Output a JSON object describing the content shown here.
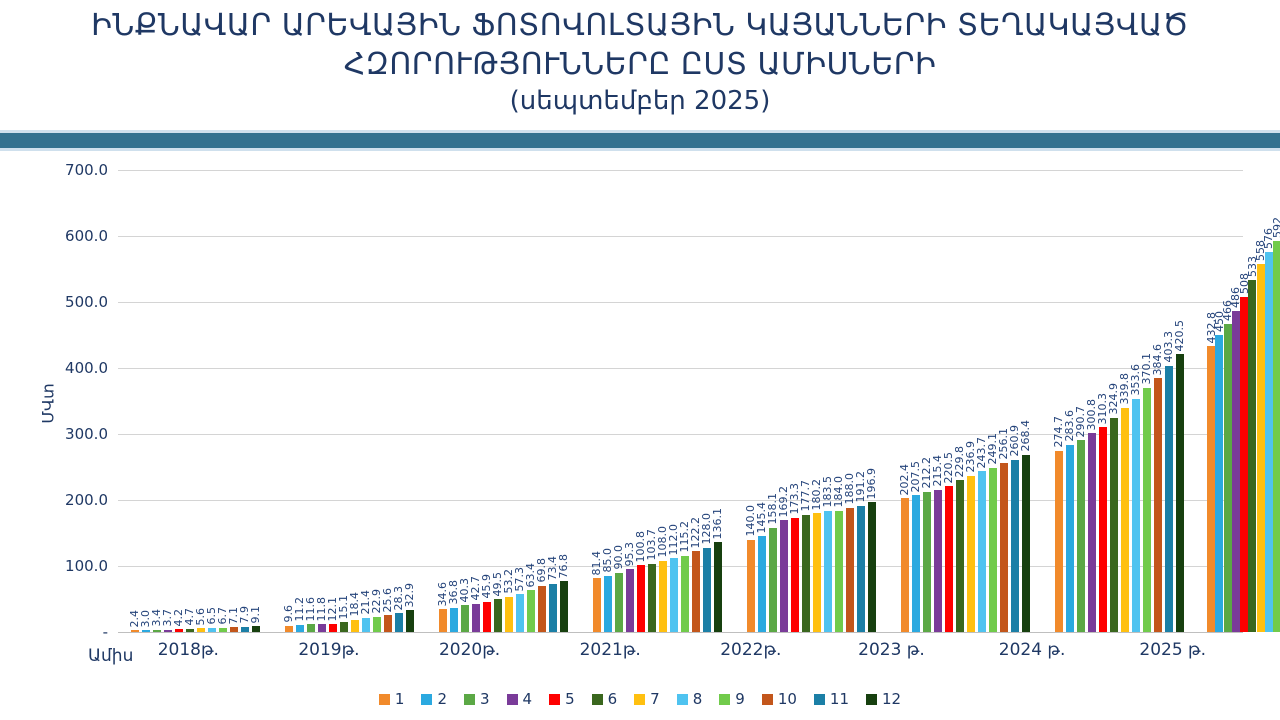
{
  "title": {
    "line1": "ԻՆՔՆԱՎԱՐ ԱՐԵՎԱՅԻՆ ՖՈՏՈՎՈԼՏԱՅԻՆ ԿԱՅԱՆՆԵՐԻ ՏԵՂԱԿԱՅՎԱԾ",
    "line2": "ՀԶՈՐՈՒԹՅՈՒՆՆԵՐԸ ԸՍՏ ԱՄԻՍՆԵՐԻ",
    "line3": "(սեպտեմբեր 2025)",
    "color": "#1F3864"
  },
  "divider": {
    "band_color": "#33718F",
    "edge_color": "#CFE0ED"
  },
  "chart_data": {
    "type": "bar",
    "title": "ԻՆՔՆԱՎԱՐ ԱՐԵՎԱՅԻՆ ՖՈՏՈՎՈԼՏԱՅԻՆ ԿԱՅԱՆՆԵՐԻ ՏԵՂԱԿԱՅՎԱԾ ՀԶՈՐՈՒԹՅՈՒՆՆԵՐԸ ԸՍՏ ԱՄԻՍՆԵՐԻ",
    "subtitle": "(սեպտեմբեր 2025)",
    "ylabel": "ՄՎտ",
    "xlabel": "Ամիս",
    "ylim": [
      0,
      700
    ],
    "grid": true,
    "legend_position": "bottom",
    "yticks": [
      0,
      100,
      200,
      300,
      400,
      500,
      600,
      700
    ],
    "ytick_labels": [
      "-",
      "100.0",
      "200.0",
      "300.0",
      "400.0",
      "500.0",
      "600.0",
      "700.0"
    ],
    "series_names": [
      "1",
      "2",
      "3",
      "4",
      "5",
      "6",
      "7",
      "8",
      "9",
      "10",
      "11",
      "12"
    ],
    "series_colors": [
      "#F18A2B",
      "#2BA9E0",
      "#5BA845",
      "#7A3B99",
      "#FE0000",
      "#3A671E",
      "#FFC010",
      "#4FC3F0",
      "#71CB4B",
      "#C3561B",
      "#1B7FA6",
      "#17400F"
    ],
    "categories": [
      "2018թ.",
      "2019թ.",
      "2020թ.",
      "2021թ.",
      "2022թ.",
      "2023 թ.",
      "2024 թ.",
      "2025 թ."
    ],
    "groups": [
      {
        "category": "2018թ.",
        "values": [
          2.4,
          3.0,
          3.4,
          3.7,
          4.2,
          4.7,
          5.6,
          6.5,
          6.7,
          7.1,
          7.9,
          9.1
        ],
        "labels": [
          "2.4",
          "3.0",
          "3.4",
          "3.7",
          "4.2",
          "4.7",
          "5.6",
          "6.5",
          "6.7",
          "7.1",
          "7.9",
          "9.1"
        ]
      },
      {
        "category": "2019թ.",
        "values": [
          9.6,
          11.2,
          11.6,
          11.8,
          12.1,
          15.1,
          18.4,
          21.4,
          22.9,
          25.6,
          28.3,
          32.9
        ],
        "labels": [
          "9.6",
          "11.2",
          "11.6",
          "11.8",
          "12.1",
          "15.1",
          "18.4",
          "21.4",
          "22.9",
          "25.6",
          "28.3",
          "32.9"
        ]
      },
      {
        "category": "2020թ.",
        "values": [
          34.6,
          36.8,
          40.3,
          42.7,
          45.9,
          49.5,
          53.2,
          57.3,
          63.4,
          69.8,
          73.4,
          76.8
        ],
        "labels": [
          "34.6",
          "36.8",
          "40.3",
          "42.7",
          "45.9",
          "49.5",
          "53.2",
          "57.3",
          "63.4",
          "69.8",
          "73.4",
          "76.8"
        ]
      },
      {
        "category": "2021թ.",
        "values": [
          81.4,
          85.0,
          90.0,
          95.3,
          100.8,
          103.7,
          108.0,
          112.0,
          115.2,
          122.2,
          128.0,
          136.1
        ],
        "labels": [
          "81.4",
          "85.0",
          "90.0",
          "95.3",
          "100.8",
          "103.7",
          "108.0",
          "112.0",
          "115.2",
          "122.2",
          "128.0",
          "136.1"
        ]
      },
      {
        "category": "2022թ.",
        "values": [
          140.0,
          145.4,
          158.1,
          169.2,
          173.3,
          177.7,
          180.2,
          183.5,
          184.0,
          188.0,
          191.2,
          196.9
        ],
        "labels": [
          "140.0",
          "145.4",
          "158.1",
          "169.2",
          "173.3",
          "177.7",
          "180.2",
          "183.5",
          "184.0",
          "188.0",
          "191.2",
          "196.9"
        ]
      },
      {
        "category": "2023 թ.",
        "values": [
          202.4,
          207.5,
          212.2,
          215.4,
          220.5,
          229.8,
          236.9,
          243.7,
          249.1,
          256.1,
          260.9,
          268.4
        ],
        "labels": [
          "202.4",
          "207.5",
          "212.2",
          "215.4",
          "220.5",
          "229.8",
          "236.9",
          "243.7",
          "249.1",
          "256.1",
          "260.9",
          "268.4"
        ]
      },
      {
        "category": "2024 թ.",
        "values": [
          274.7,
          283.6,
          290.7,
          300.8,
          310.3,
          324.9,
          339.8,
          353.6,
          370.1,
          384.6,
          403.3,
          420.5
        ],
        "labels": [
          "274.7",
          "283.6",
          "290.7",
          "300.8",
          "310.3",
          "324.9",
          "339.8",
          "353.6",
          "370.1",
          "384.6",
          "403.3",
          "420.5"
        ]
      },
      {
        "category": "2025 թ.",
        "values": [
          432.8,
          450,
          466,
          486,
          508,
          533,
          558,
          576,
          592
        ],
        "labels": [
          "432.8",
          "450",
          "466",
          "486",
          "508",
          "533",
          "558",
          "576",
          "592"
        ]
      }
    ]
  }
}
